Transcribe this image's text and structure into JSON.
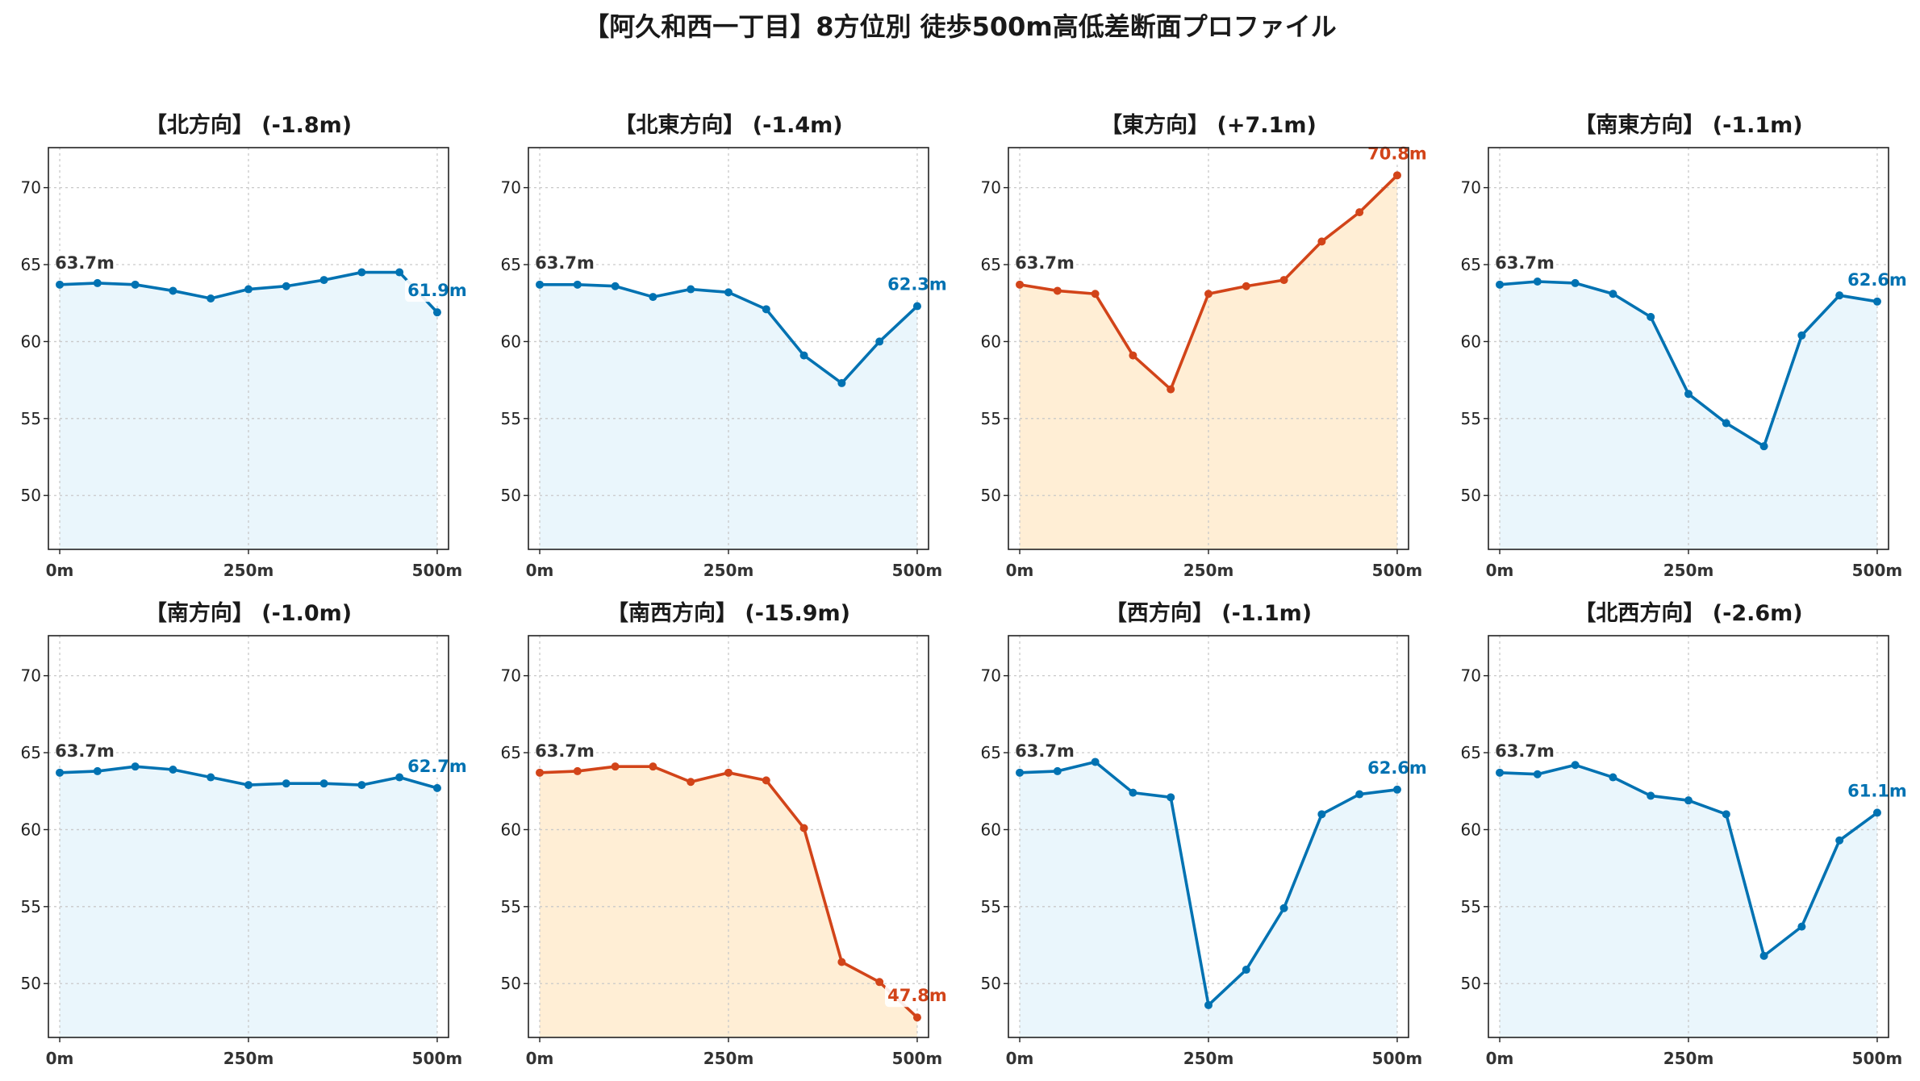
{
  "title": "【阿久和西一丁目】8方位別 徒歩500m高低差断面プロファイル",
  "colors": {
    "up_line": "#0072b2",
    "up_fill": "#eaf6fc",
    "alert_line": "#d24419",
    "alert_fill": "#ffeed5"
  },
  "chart_data": [
    {
      "type": "area",
      "title": "【北方向】 (-1.8m)",
      "x_ticks": [
        "0m",
        "250m",
        "500m"
      ],
      "y_ticks": [
        "50",
        "55",
        "60",
        "65",
        "70"
      ],
      "ylim": [
        46.5,
        72.6
      ],
      "xlim": [
        -15,
        515
      ],
      "grid": true,
      "highlight": false,
      "x": [
        0,
        50,
        100,
        150,
        200,
        250,
        300,
        350,
        400,
        450,
        500
      ],
      "y": [
        63.7,
        63.8,
        63.7,
        63.3,
        62.8,
        63.4,
        63.6,
        64.0,
        64.5,
        64.5,
        61.9
      ],
      "start_label": "63.7m",
      "end_label": "61.9m"
    },
    {
      "type": "area",
      "title": "【北東方向】 (-1.4m)",
      "x_ticks": [
        "0m",
        "250m",
        "500m"
      ],
      "y_ticks": [
        "50",
        "55",
        "60",
        "65",
        "70"
      ],
      "ylim": [
        46.5,
        72.6
      ],
      "xlim": [
        -15,
        515
      ],
      "grid": true,
      "highlight": false,
      "x": [
        0,
        50,
        100,
        150,
        200,
        250,
        300,
        350,
        400,
        450,
        500
      ],
      "y": [
        63.7,
        63.7,
        63.6,
        62.9,
        63.4,
        63.2,
        62.1,
        59.1,
        57.3,
        60.0,
        62.3
      ],
      "start_label": "63.7m",
      "end_label": "62.3m"
    },
    {
      "type": "area",
      "title": "【東方向】 (+7.1m)",
      "x_ticks": [
        "0m",
        "250m",
        "500m"
      ],
      "y_ticks": [
        "50",
        "55",
        "60",
        "65",
        "70"
      ],
      "ylim": [
        46.5,
        72.6
      ],
      "xlim": [
        -15,
        515
      ],
      "grid": true,
      "highlight": true,
      "x": [
        0,
        50,
        100,
        150,
        200,
        250,
        300,
        350,
        400,
        450,
        500
      ],
      "y": [
        63.7,
        63.3,
        63.1,
        59.1,
        56.9,
        63.1,
        63.6,
        64.0,
        66.5,
        68.4,
        70.8
      ],
      "start_label": "63.7m",
      "end_label": "70.8m"
    },
    {
      "type": "area",
      "title": "【南東方向】 (-1.1m)",
      "x_ticks": [
        "0m",
        "250m",
        "500m"
      ],
      "y_ticks": [
        "50",
        "55",
        "60",
        "65",
        "70"
      ],
      "ylim": [
        46.5,
        72.6
      ],
      "xlim": [
        -15,
        515
      ],
      "grid": true,
      "highlight": false,
      "x": [
        0,
        50,
        100,
        150,
        200,
        250,
        300,
        350,
        400,
        450,
        500
      ],
      "y": [
        63.7,
        63.9,
        63.8,
        63.1,
        61.6,
        56.6,
        54.7,
        53.2,
        60.4,
        63.0,
        62.6
      ],
      "start_label": "63.7m",
      "end_label": "62.6m"
    },
    {
      "type": "area",
      "title": "【南方向】 (-1.0m)",
      "x_ticks": [
        "0m",
        "250m",
        "500m"
      ],
      "y_ticks": [
        "50",
        "55",
        "60",
        "65",
        "70"
      ],
      "ylim": [
        46.5,
        72.6
      ],
      "xlim": [
        -15,
        515
      ],
      "grid": true,
      "highlight": false,
      "x": [
        0,
        50,
        100,
        150,
        200,
        250,
        300,
        350,
        400,
        450,
        500
      ],
      "y": [
        63.7,
        63.8,
        64.1,
        63.9,
        63.4,
        62.9,
        63.0,
        63.0,
        62.9,
        63.4,
        62.7
      ],
      "start_label": "63.7m",
      "end_label": "62.7m"
    },
    {
      "type": "area",
      "title": "【南西方向】 (-15.9m)",
      "x_ticks": [
        "0m",
        "250m",
        "500m"
      ],
      "y_ticks": [
        "50",
        "55",
        "60",
        "65",
        "70"
      ],
      "ylim": [
        46.5,
        72.6
      ],
      "xlim": [
        -15,
        515
      ],
      "grid": true,
      "highlight": true,
      "x": [
        0,
        50,
        100,
        150,
        200,
        250,
        300,
        350,
        400,
        450,
        500
      ],
      "y": [
        63.7,
        63.8,
        64.1,
        64.1,
        63.1,
        63.7,
        63.2,
        60.1,
        51.4,
        50.1,
        47.8
      ],
      "start_label": "63.7m",
      "end_label": "47.8m"
    },
    {
      "type": "area",
      "title": "【西方向】 (-1.1m)",
      "x_ticks": [
        "0m",
        "250m",
        "500m"
      ],
      "y_ticks": [
        "50",
        "55",
        "60",
        "65",
        "70"
      ],
      "ylim": [
        46.5,
        72.6
      ],
      "xlim": [
        -15,
        515
      ],
      "grid": true,
      "highlight": false,
      "x": [
        0,
        50,
        100,
        150,
        200,
        250,
        300,
        350,
        400,
        450,
        500
      ],
      "y": [
        63.7,
        63.8,
        64.4,
        62.4,
        62.1,
        48.6,
        50.9,
        54.9,
        61.0,
        62.3,
        62.6
      ],
      "start_label": "63.7m",
      "end_label": "62.6m"
    },
    {
      "type": "area",
      "title": "【北西方向】 (-2.6m)",
      "x_ticks": [
        "0m",
        "250m",
        "500m"
      ],
      "y_ticks": [
        "50",
        "55",
        "60",
        "65",
        "70"
      ],
      "ylim": [
        46.5,
        72.6
      ],
      "xlim": [
        -15,
        515
      ],
      "grid": true,
      "highlight": false,
      "x": [
        0,
        50,
        100,
        150,
        200,
        250,
        300,
        350,
        400,
        450,
        500
      ],
      "y": [
        63.7,
        63.6,
        64.2,
        63.4,
        62.2,
        61.9,
        61.0,
        51.8,
        53.7,
        59.3,
        61.1
      ],
      "start_label": "63.7m",
      "end_label": "61.1m"
    }
  ]
}
